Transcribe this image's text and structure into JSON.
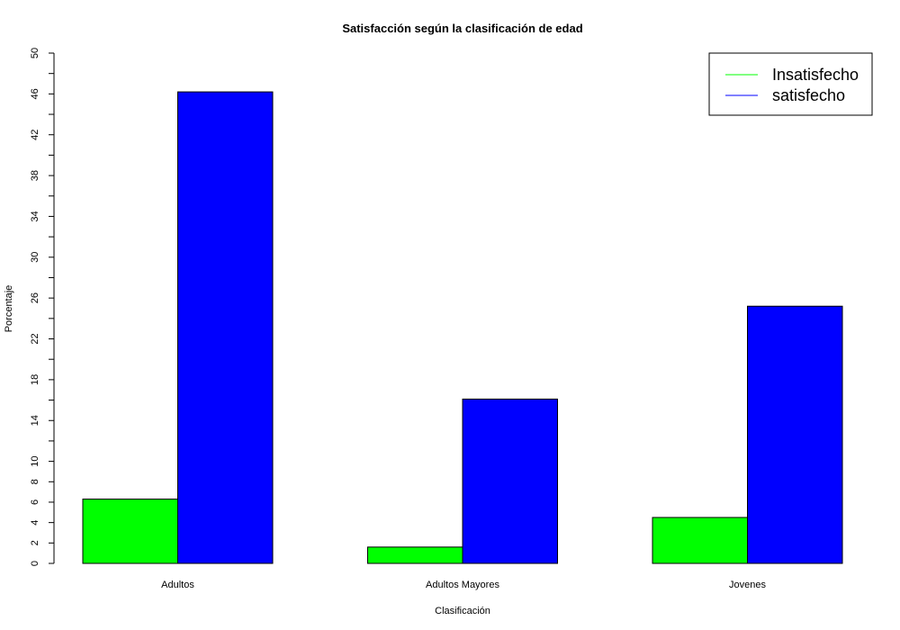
{
  "chart_data": {
    "type": "bar",
    "title": "Satisfacción según la clasificación de edad",
    "xlabel": "Clasificación",
    "ylabel": "Porcentaje",
    "categories": [
      "Adultos",
      "Adultos Mayores",
      "Jovenes"
    ],
    "series": [
      {
        "name": "Insatisfecho",
        "color": "#00ff00",
        "values": [
          6.3,
          1.6,
          4.5
        ]
      },
      {
        "name": "satisfecho",
        "color": "#0000ff",
        "values": [
          46.2,
          16.1,
          25.2
        ]
      }
    ],
    "ylim": [
      0,
      50
    ],
    "yticks": [
      0,
      2,
      4,
      6,
      8,
      10,
      14,
      18,
      22,
      26,
      30,
      34,
      38,
      42,
      46,
      50
    ],
    "ytick_marks": [
      0,
      2,
      4,
      6,
      8,
      10,
      12,
      14,
      16,
      18,
      20,
      22,
      24,
      26,
      28,
      30,
      32,
      34,
      36,
      38,
      40,
      42,
      44,
      46,
      48,
      50
    ],
    "grid": false,
    "legend_position": "top-right"
  }
}
